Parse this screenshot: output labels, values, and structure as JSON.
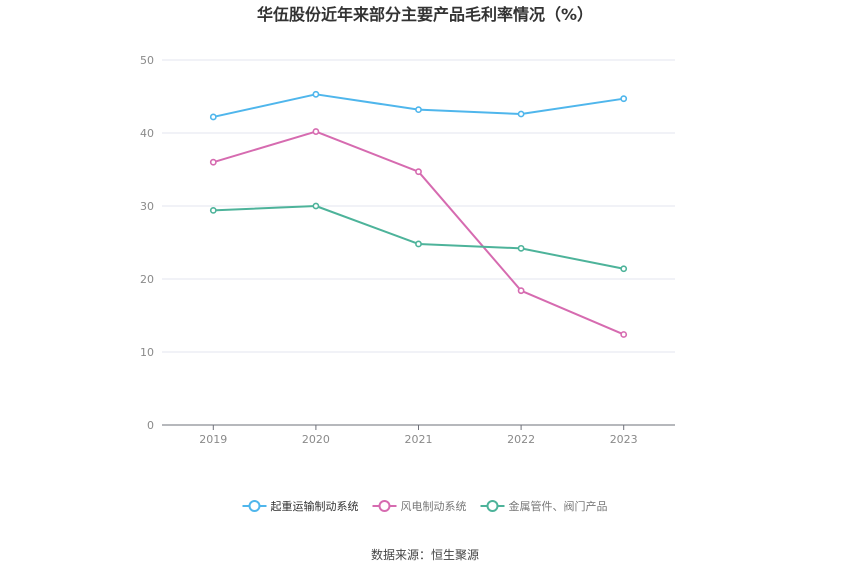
{
  "chart_data": {
    "type": "line",
    "title": "华伍股份近年来部分主要产品毛利率情况（%）",
    "categories": [
      "2019",
      "2020",
      "2021",
      "2022",
      "2023"
    ],
    "ylim": [
      0,
      50
    ],
    "yticks": [
      "0",
      "10",
      "20",
      "30",
      "40",
      "50"
    ],
    "grid": true,
    "legend_position": "bottom-center",
    "series": [
      {
        "name": "起重运输制动系统",
        "color": "#4fb6ec",
        "values": [
          42.2,
          45.3,
          43.2,
          42.6,
          44.7
        ]
      },
      {
        "name": "风电制动系统",
        "color": "#d66bb0",
        "values": [
          36.0,
          40.2,
          34.7,
          18.4,
          12.4
        ]
      },
      {
        "name": "金属管件、阀门产品",
        "color": "#4db39a",
        "values": [
          29.4,
          30.0,
          24.8,
          24.2,
          21.4
        ]
      }
    ],
    "source": "数据来源：恒生聚源"
  }
}
